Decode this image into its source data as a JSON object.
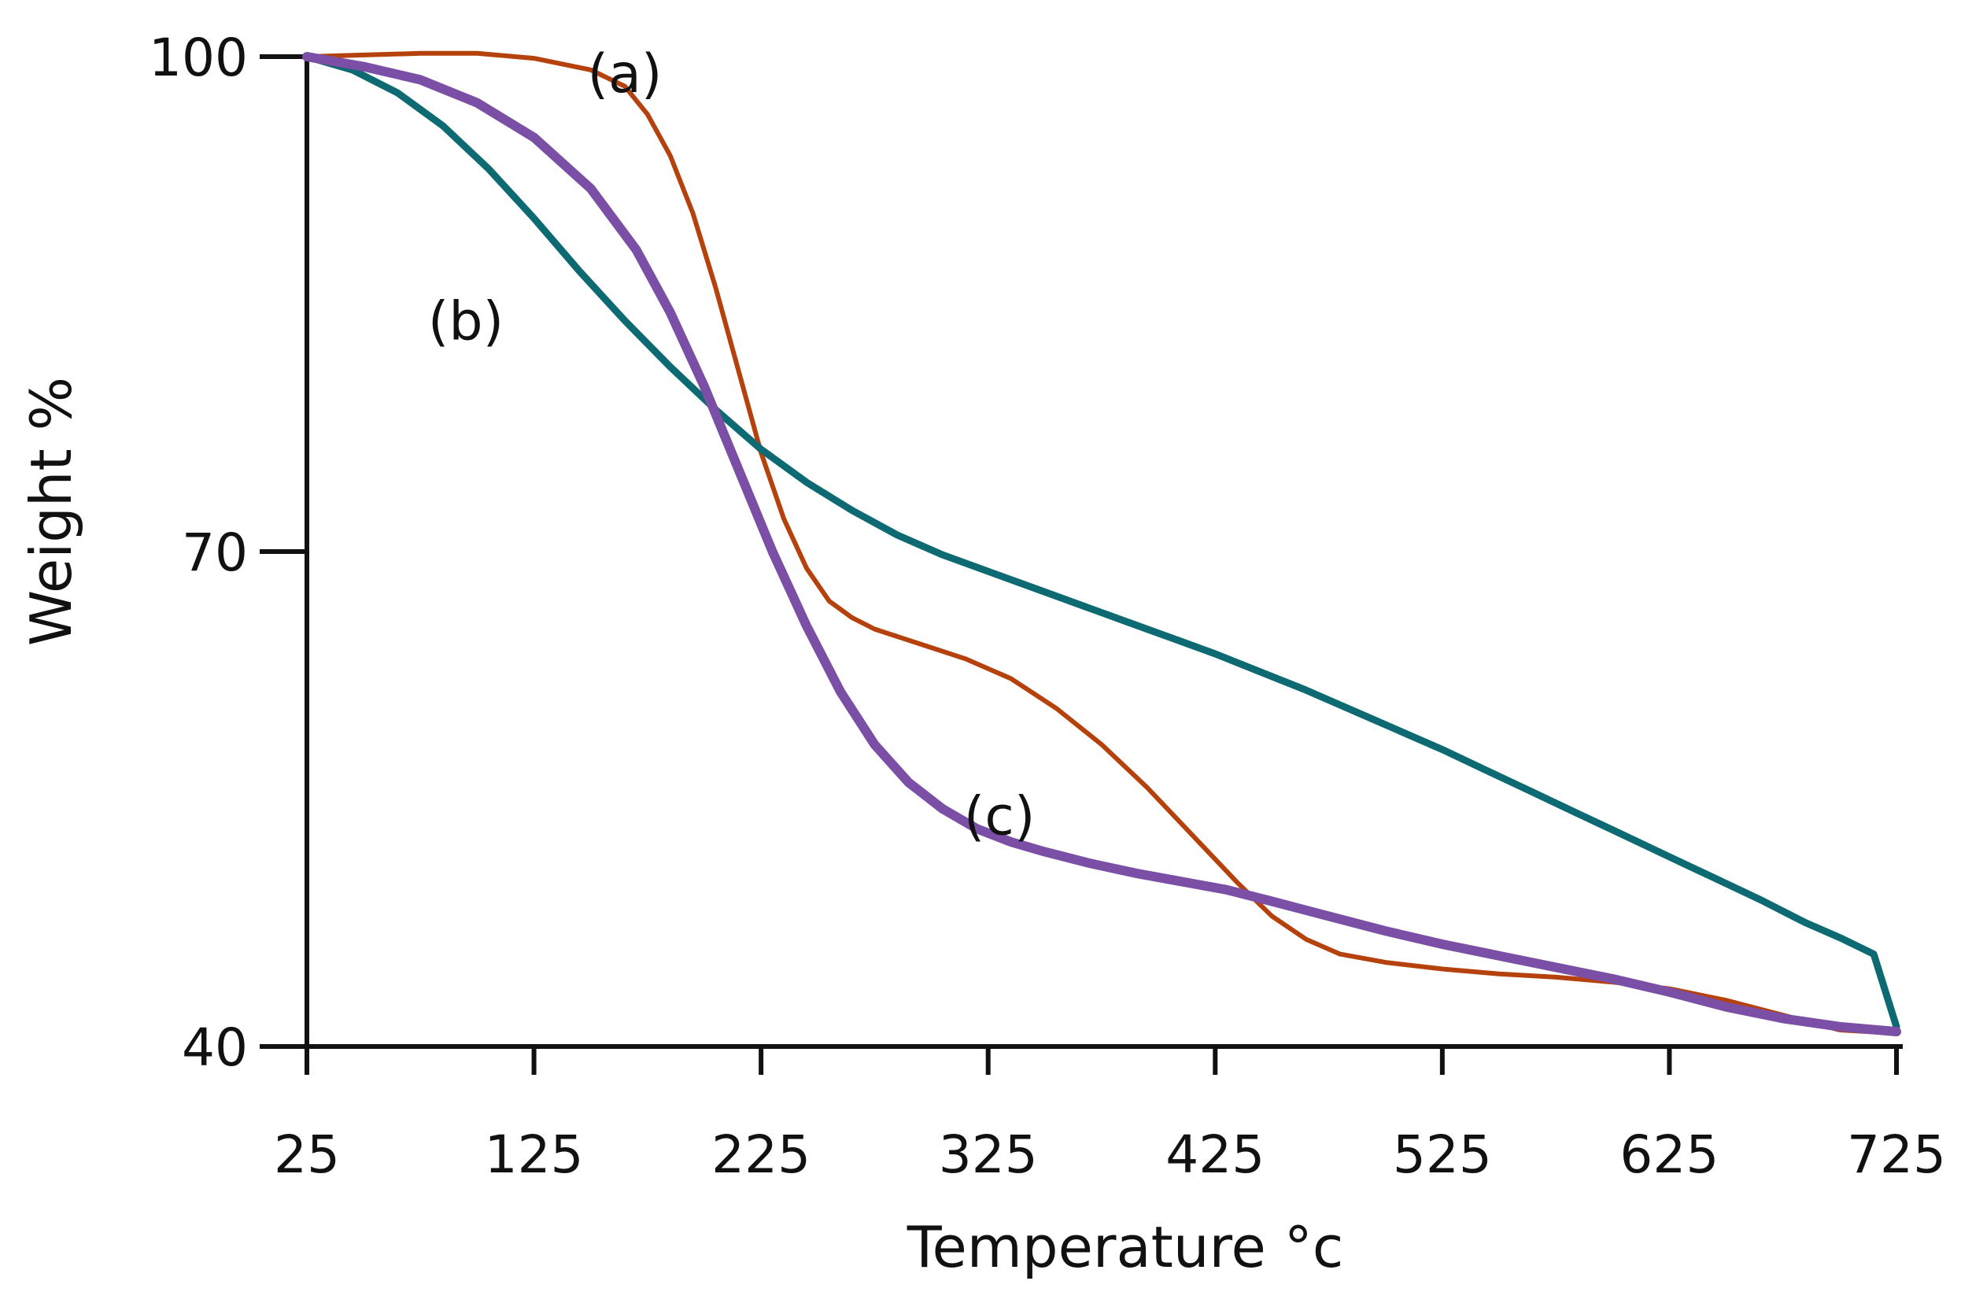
{
  "chart_data": {
    "type": "line",
    "title": "",
    "xlabel": "Temperature °c",
    "ylabel": "Weight %",
    "xlim": [
      25,
      725
    ],
    "ylim": [
      40,
      100
    ],
    "x_ticks": [
      25,
      125,
      225,
      325,
      425,
      525,
      625,
      725
    ],
    "y_ticks": [
      40,
      70,
      100
    ],
    "grid": false,
    "legend": "none",
    "series": [
      {
        "name": "(a)",
        "color": "#b5420c",
        "label_anchor": [
          165,
          99
        ],
        "points": [
          [
            25,
            100
          ],
          [
            50,
            100.1
          ],
          [
            75,
            100.2
          ],
          [
            100,
            100.2
          ],
          [
            125,
            99.9
          ],
          [
            150,
            99.2
          ],
          [
            165,
            98.2
          ],
          [
            175,
            96.5
          ],
          [
            185,
            94
          ],
          [
            195,
            90.5
          ],
          [
            205,
            86
          ],
          [
            215,
            81
          ],
          [
            225,
            76
          ],
          [
            235,
            72
          ],
          [
            245,
            69
          ],
          [
            255,
            67
          ],
          [
            265,
            66
          ],
          [
            275,
            65.3
          ],
          [
            295,
            64.4
          ],
          [
            315,
            63.5
          ],
          [
            335,
            62.3
          ],
          [
            355,
            60.5
          ],
          [
            375,
            58.3
          ],
          [
            395,
            55.7
          ],
          [
            415,
            52.8
          ],
          [
            435,
            49.9
          ],
          [
            450,
            47.9
          ],
          [
            465,
            46.5
          ],
          [
            480,
            45.6
          ],
          [
            500,
            45.1
          ],
          [
            525,
            44.7
          ],
          [
            550,
            44.4
          ],
          [
            575,
            44.2
          ],
          [
            600,
            43.9
          ],
          [
            625,
            43.5
          ],
          [
            650,
            42.8
          ],
          [
            675,
            41.9
          ],
          [
            700,
            41
          ],
          [
            725,
            40.8
          ]
        ]
      },
      {
        "name": "(b)",
        "color": "#0d6a72",
        "label_anchor": [
          95,
          84
        ],
        "points": [
          [
            25,
            100
          ],
          [
            45,
            99.2
          ],
          [
            65,
            97.8
          ],
          [
            85,
            95.8
          ],
          [
            105,
            93.2
          ],
          [
            125,
            90.2
          ],
          [
            145,
            87
          ],
          [
            165,
            84
          ],
          [
            185,
            81.2
          ],
          [
            205,
            78.6
          ],
          [
            225,
            76.2
          ],
          [
            245,
            74.2
          ],
          [
            265,
            72.5
          ],
          [
            285,
            71
          ],
          [
            305,
            69.8
          ],
          [
            325,
            68.8
          ],
          [
            345,
            67.8
          ],
          [
            365,
            66.8
          ],
          [
            385,
            65.8
          ],
          [
            405,
            64.8
          ],
          [
            425,
            63.8
          ],
          [
            445,
            62.7
          ],
          [
            465,
            61.6
          ],
          [
            485,
            60.4
          ],
          [
            505,
            59.2
          ],
          [
            525,
            58
          ],
          [
            545,
            56.7
          ],
          [
            565,
            55.4
          ],
          [
            585,
            54.1
          ],
          [
            605,
            52.8
          ],
          [
            625,
            51.5
          ],
          [
            645,
            50.2
          ],
          [
            665,
            48.9
          ],
          [
            685,
            47.5
          ],
          [
            700,
            46.6
          ],
          [
            715,
            45.6
          ],
          [
            725,
            41.2
          ]
        ]
      },
      {
        "name": "(c)",
        "color": "#7b4fa6",
        "label_anchor": [
          330,
          54
        ],
        "points": [
          [
            25,
            100
          ],
          [
            50,
            99.4
          ],
          [
            75,
            98.6
          ],
          [
            100,
            97.2
          ],
          [
            125,
            95.1
          ],
          [
            150,
            92
          ],
          [
            170,
            88.3
          ],
          [
            185,
            84.5
          ],
          [
            200,
            80
          ],
          [
            215,
            75
          ],
          [
            230,
            70
          ],
          [
            245,
            65.5
          ],
          [
            260,
            61.5
          ],
          [
            275,
            58.3
          ],
          [
            290,
            56
          ],
          [
            305,
            54.4
          ],
          [
            320,
            53.2
          ],
          [
            335,
            52.4
          ],
          [
            350,
            51.8
          ],
          [
            370,
            51.1
          ],
          [
            390,
            50.5
          ],
          [
            410,
            50
          ],
          [
            430,
            49.5
          ],
          [
            450,
            48.8
          ],
          [
            475,
            47.9
          ],
          [
            500,
            47
          ],
          [
            525,
            46.2
          ],
          [
            550,
            45.5
          ],
          [
            575,
            44.8
          ],
          [
            600,
            44.1
          ],
          [
            625,
            43.3
          ],
          [
            650,
            42.4
          ],
          [
            675,
            41.7
          ],
          [
            700,
            41.2
          ],
          [
            725,
            40.9
          ]
        ]
      }
    ]
  }
}
